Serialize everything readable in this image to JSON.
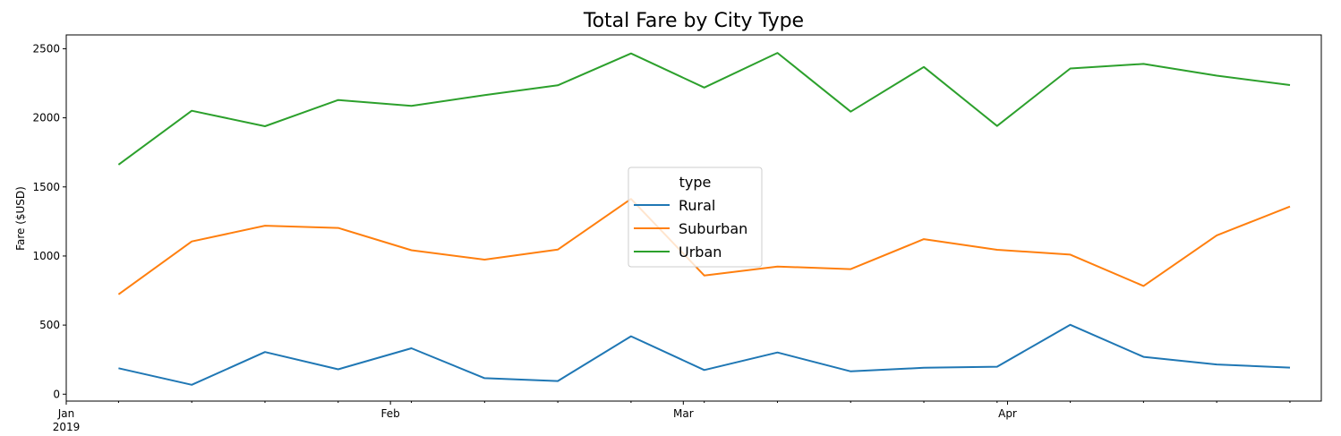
{
  "chart_data": {
    "type": "line",
    "title": "Total Fare by City Type",
    "xlabel": "",
    "ylabel": "Fare ($USD)",
    "ylim": [
      -50,
      2600
    ],
    "yticks": [
      0,
      500,
      1000,
      1500,
      2000,
      2500
    ],
    "x": [
      "2019-01-06",
      "2019-01-13",
      "2019-01-20",
      "2019-01-27",
      "2019-02-03",
      "2019-02-10",
      "2019-02-17",
      "2019-02-24",
      "2019-03-03",
      "2019-03-10",
      "2019-03-17",
      "2019-03-24",
      "2019-03-31",
      "2019-04-07",
      "2019-04-14",
      "2019-04-21",
      "2019-04-28"
    ],
    "xticks": [
      {
        "date": "2019-01-01",
        "label": "Jan",
        "sublabel": "2019"
      },
      {
        "date": "2019-02-01",
        "label": "Feb",
        "sublabel": ""
      },
      {
        "date": "2019-03-01",
        "label": "Mar",
        "sublabel": ""
      },
      {
        "date": "2019-04-01",
        "label": "Apr",
        "sublabel": ""
      }
    ],
    "xlim": [
      "2019-01-01",
      "2019-05-01"
    ],
    "series": [
      {
        "name": "Rural",
        "color": "#1f77b4",
        "values": [
          188,
          68,
          305,
          180,
          332,
          116,
          95,
          419,
          175,
          302,
          165,
          191,
          199,
          502,
          270,
          215,
          192
        ]
      },
      {
        "name": "Suburban",
        "color": "#ff7f0e",
        "values": [
          722,
          1105,
          1219,
          1203,
          1042,
          974,
          1046,
          1413,
          859,
          924,
          905,
          1122,
          1045,
          1010,
          783,
          1149,
          1358
        ]
      },
      {
        "name": "Urban",
        "color": "#2ca02c",
        "values": [
          1661,
          2051,
          1939,
          2129,
          2087,
          2164,
          2235,
          2466,
          2219,
          2470,
          2045,
          2368,
          1941,
          2357,
          2390,
          2305,
          2237
        ]
      }
    ],
    "legend": {
      "title": "type",
      "placement": "center"
    },
    "grid": false
  }
}
